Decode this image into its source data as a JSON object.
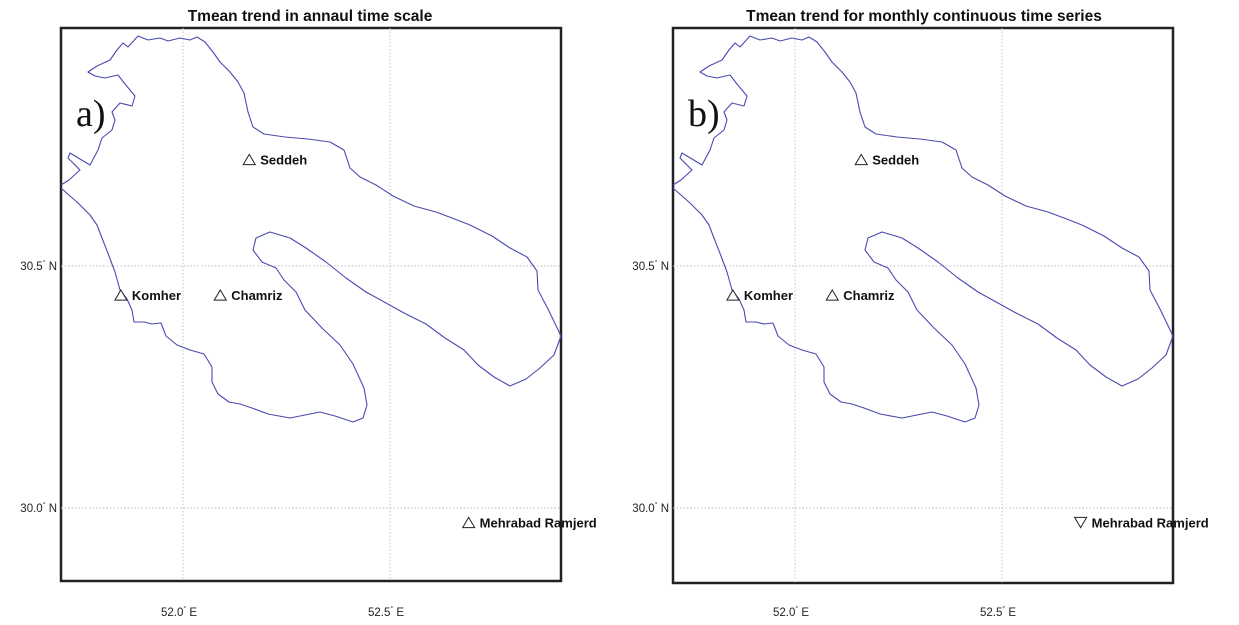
{
  "panels": [
    {
      "id": "a",
      "title": "Tmean trend in annaul time scale",
      "label": "a)",
      "x_ticks": [
        {
          "value": "52.0",
          "dir": "E"
        },
        {
          "value": "52.5",
          "dir": "E"
        }
      ],
      "y_ticks": [
        {
          "value": "30.5",
          "dir": "N"
        },
        {
          "value": "30.0",
          "dir": "N"
        }
      ],
      "stations": [
        {
          "name": "Seddeh",
          "lon": 52.16,
          "lat": 30.72,
          "trend": "up"
        },
        {
          "name": "Komher",
          "lon": 51.85,
          "lat": 30.44,
          "trend": "up"
        },
        {
          "name": "Chamriz",
          "lon": 52.09,
          "lat": 30.44,
          "trend": "up"
        },
        {
          "name": "Mehrabad Ramjerd",
          "lon": 52.69,
          "lat": 29.97,
          "trend": "up"
        }
      ]
    },
    {
      "id": "b",
      "title": "Tmean trend for monthly continuous time series",
      "label": "b)",
      "x_ticks": [
        {
          "value": "52.0",
          "dir": "E"
        },
        {
          "value": "52.5",
          "dir": "E"
        }
      ],
      "y_ticks": [
        {
          "value": "30.5",
          "dir": "N"
        },
        {
          "value": "30.0",
          "dir": "N"
        }
      ],
      "stations": [
        {
          "name": "Seddeh",
          "lon": 52.16,
          "lat": 30.72,
          "trend": "up"
        },
        {
          "name": "Komher",
          "lon": 51.85,
          "lat": 30.44,
          "trend": "up"
        },
        {
          "name": "Chamriz",
          "lon": 52.09,
          "lat": 30.44,
          "trend": "up"
        },
        {
          "name": "Mehrabad Ramjerd",
          "lon": 52.69,
          "lat": 29.97,
          "trend": "down"
        }
      ]
    }
  ],
  "colors": {
    "outline": "#4a4ab0",
    "frame": "#222222",
    "grid": "#bdbdbd"
  }
}
